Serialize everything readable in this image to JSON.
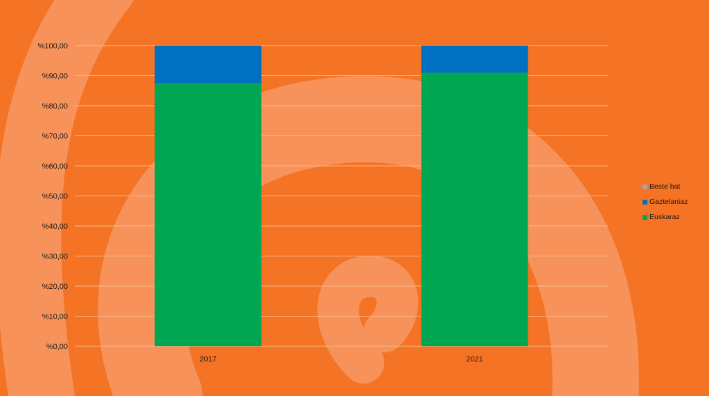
{
  "chart_data": {
    "type": "bar",
    "stacked": true,
    "categories": [
      "2017",
      "2021"
    ],
    "series": [
      {
        "name": "Euskaraz",
        "values": [
          87.5,
          91.0
        ],
        "color": "#00a651"
      },
      {
        "name": "Gaztelaniaz",
        "values": [
          12.5,
          9.0
        ],
        "color": "#0070c0"
      },
      {
        "name": "Beste bat",
        "values": [
          0,
          0
        ],
        "color": "#a5a5a5"
      }
    ],
    "ylim": [
      0,
      100
    ],
    "yticks": [
      "%0,00",
      "%10,00",
      "%20,00",
      "%30,00",
      "%40,00",
      "%50,00",
      "%60,00",
      "%70,00",
      "%80,00",
      "%90,00",
      "%100,00"
    ],
    "grid": true,
    "legend_position": "right",
    "title": "",
    "xlabel": "",
    "ylabel": ""
  },
  "legend": {
    "items": [
      {
        "label": "Beste bat",
        "color": "#a5a5a5"
      },
      {
        "label": "Gaztelaniaz",
        "color": "#0070c0"
      },
      {
        "label": "Euskaraz",
        "color": "#00a651"
      }
    ]
  },
  "colors": {
    "background": "#f47324",
    "gridline": "#f9b98e",
    "decor": "#f7935a"
  }
}
